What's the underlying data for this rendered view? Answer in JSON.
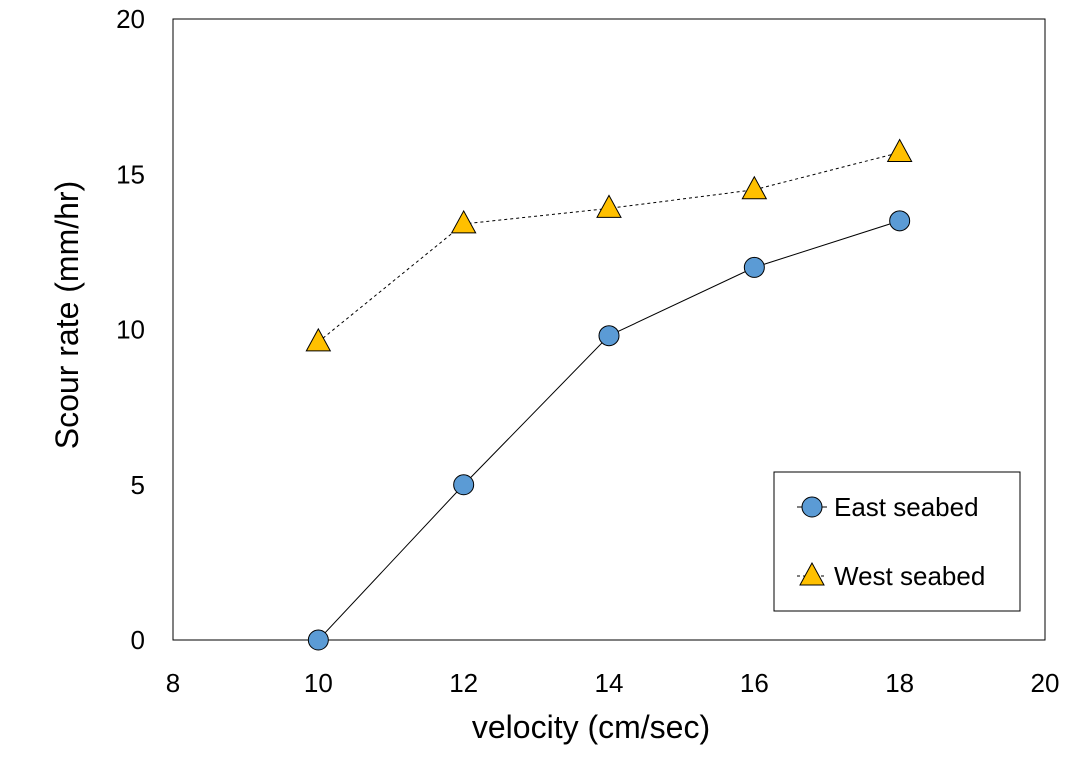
{
  "chart_data": {
    "type": "line",
    "title": "",
    "xlabel": "velocity (cm/sec)",
    "ylabel": "Scour rate (mm/hr)",
    "xlim": [
      8,
      20
    ],
    "ylim": [
      0,
      20
    ],
    "xticks": [
      8,
      10,
      12,
      14,
      16,
      18,
      20
    ],
    "yticks": [
      0,
      5,
      10,
      15,
      20
    ],
    "grid": false,
    "legend_position": "bottom-right",
    "series": [
      {
        "name": "East seabed",
        "marker": "circle",
        "line": "solid",
        "color": "#5b9bd5",
        "line_color": "#000000",
        "x": [
          10,
          12,
          14,
          16,
          18
        ],
        "y": [
          0,
          5,
          9.8,
          12,
          13.5
        ]
      },
      {
        "name": "West seabed",
        "marker": "triangle",
        "line": "dotted",
        "color": "#ffc000",
        "line_color": "#000000",
        "x": [
          10,
          12,
          14,
          16,
          18
        ],
        "y": [
          9.6,
          13.4,
          13.9,
          14.5,
          15.7
        ]
      }
    ]
  }
}
